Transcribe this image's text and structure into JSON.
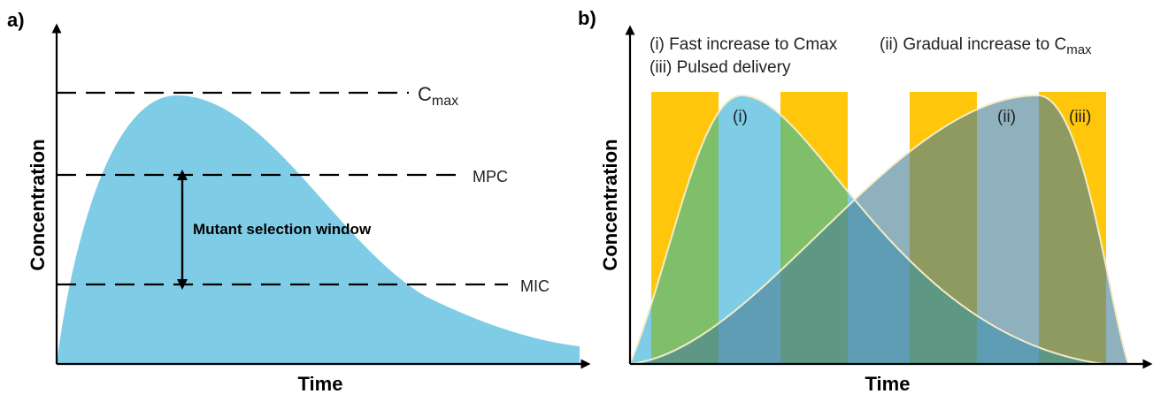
{
  "panel_a": {
    "label": "a)",
    "ylabel": "Concentration",
    "xlabel": "Time",
    "cmax_label_main": "C",
    "cmax_label_sub": "max",
    "mpc_label": "MPC",
    "mic_label": "MIC",
    "window_label": "Mutant selection window",
    "curve_color": "#7FCCE6"
  },
  "panel_b": {
    "label": "b)",
    "ylabel": "Concentration",
    "xlabel": "Time",
    "legend": {
      "item1": "(i) Fast increase to Cmax",
      "item2_main": "(ii) Gradual increase to C",
      "item2_sub": "max",
      "item3": "(iii) Pulsed delivery"
    },
    "curve_labels": {
      "i": "(i)",
      "ii": "(ii)",
      "iii": "(iii)"
    },
    "colors": {
      "fast_curve": "#7FCCE6",
      "gradual_curve": "#7FA5B8",
      "pulse": "#FFC60B",
      "outline": "#F3ECC8"
    }
  }
}
